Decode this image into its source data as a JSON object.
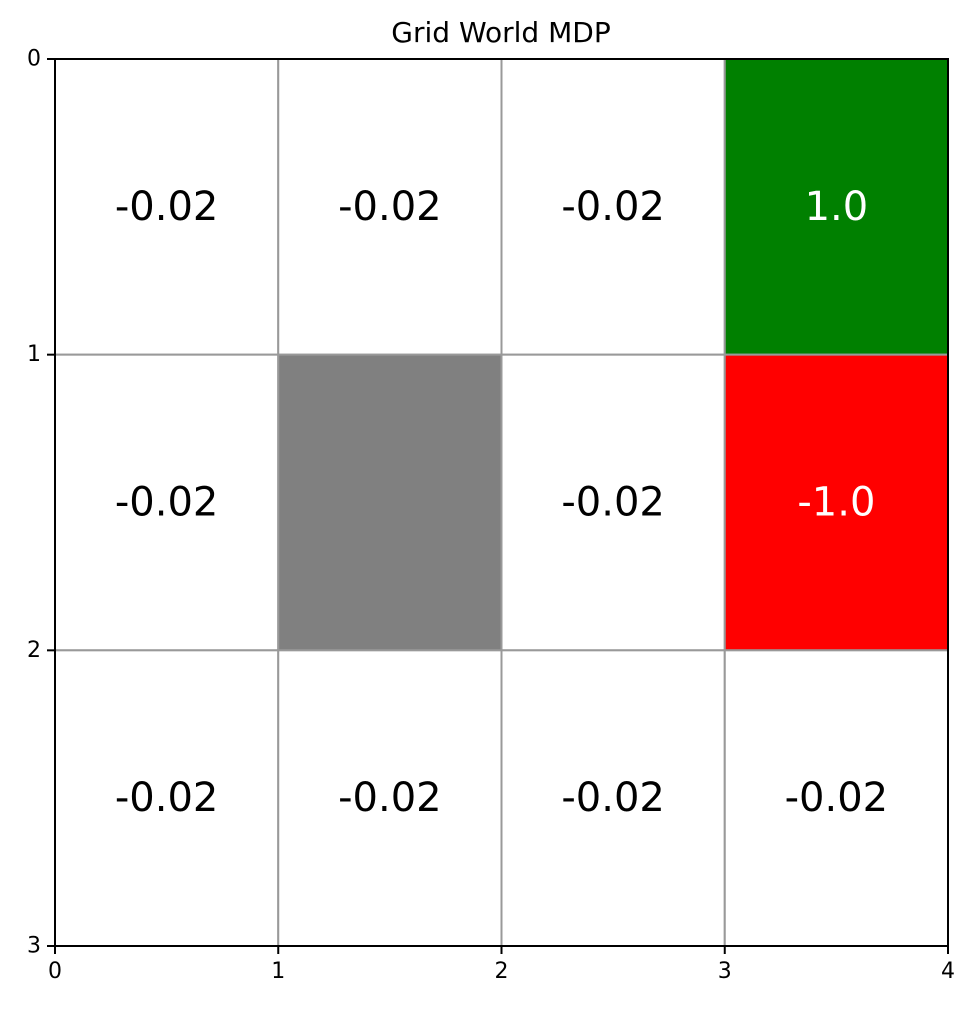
{
  "chart_data": {
    "type": "heatmap",
    "title": "Grid World MDP",
    "xlabel": "",
    "ylabel": "",
    "xlim": [
      0,
      4
    ],
    "ylim": [
      0,
      3
    ],
    "y_inverted": true,
    "x_ticks": [
      "0",
      "1",
      "2",
      "3",
      "4"
    ],
    "y_ticks": [
      "0",
      "1",
      "2",
      "3"
    ],
    "grid": true,
    "rows": 3,
    "cols": 4,
    "cells": [
      {
        "row": 0,
        "col": 0,
        "value": "-0.02",
        "fill": "#ffffff",
        "text_color": "#000000"
      },
      {
        "row": 0,
        "col": 1,
        "value": "-0.02",
        "fill": "#ffffff",
        "text_color": "#000000"
      },
      {
        "row": 0,
        "col": 2,
        "value": "-0.02",
        "fill": "#ffffff",
        "text_color": "#000000"
      },
      {
        "row": 0,
        "col": 3,
        "value": "1.0",
        "fill": "#008000",
        "text_color": "#ffffff"
      },
      {
        "row": 1,
        "col": 0,
        "value": "-0.02",
        "fill": "#ffffff",
        "text_color": "#000000"
      },
      {
        "row": 1,
        "col": 1,
        "value": "",
        "fill": "#808080",
        "text_color": "#000000"
      },
      {
        "row": 1,
        "col": 2,
        "value": "-0.02",
        "fill": "#ffffff",
        "text_color": "#000000"
      },
      {
        "row": 1,
        "col": 3,
        "value": "-1.0",
        "fill": "#ff0000",
        "text_color": "#ffffff"
      },
      {
        "row": 2,
        "col": 0,
        "value": "-0.02",
        "fill": "#ffffff",
        "text_color": "#000000"
      },
      {
        "row": 2,
        "col": 1,
        "value": "-0.02",
        "fill": "#ffffff",
        "text_color": "#000000"
      },
      {
        "row": 2,
        "col": 2,
        "value": "-0.02",
        "fill": "#ffffff",
        "text_color": "#000000"
      },
      {
        "row": 2,
        "col": 3,
        "value": "-0.02",
        "fill": "#ffffff",
        "text_color": "#000000"
      }
    ]
  }
}
